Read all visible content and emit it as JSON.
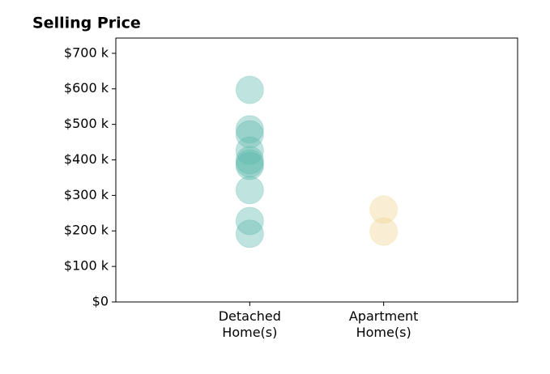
{
  "chart_data": {
    "type": "strip",
    "title": "Selling Price",
    "categories": [
      "Detached\nHome(s)",
      "Apartment\nHome(s)"
    ],
    "values": [
      [
        597000,
        486000,
        472000,
        426000,
        399000,
        390000,
        383000,
        315000,
        228000,
        192000
      ],
      [
        260000,
        198000
      ]
    ],
    "colors": [
      "#5fb8ad",
      "#f0d592"
    ],
    "ylim": [
      0,
      743000
    ],
    "yticks": [
      {
        "value": 0,
        "label": "$0"
      },
      {
        "value": 100000,
        "label": "$100 k"
      },
      {
        "value": 200000,
        "label": "$200 k"
      },
      {
        "value": 300000,
        "label": "$300 k"
      },
      {
        "value": 400000,
        "label": "$400 k"
      },
      {
        "value": 500000,
        "label": "$500 k"
      },
      {
        "value": 600000,
        "label": "$600 k"
      },
      {
        "value": 700000,
        "label": "$700 k"
      }
    ]
  }
}
